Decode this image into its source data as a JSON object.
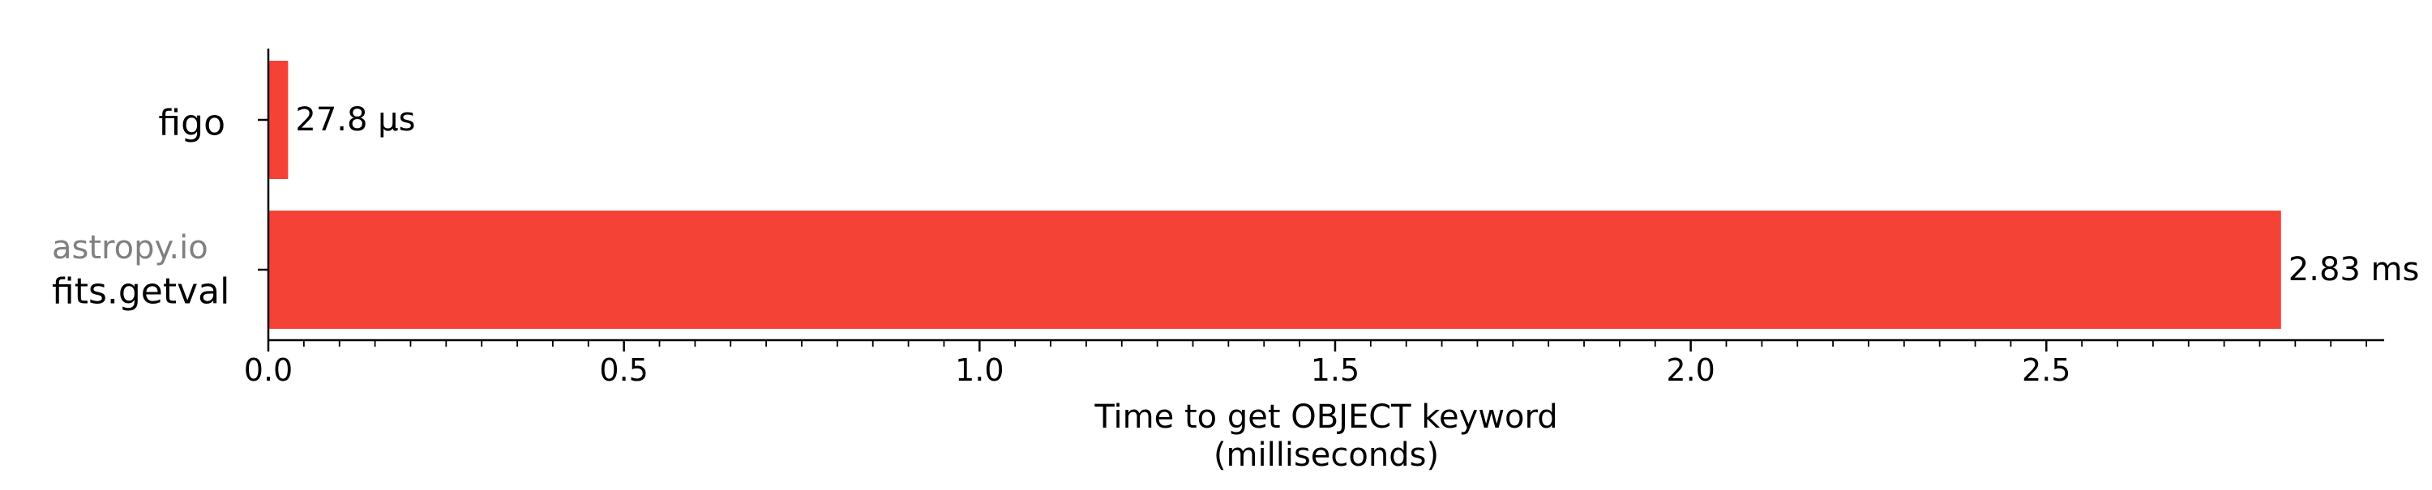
{
  "colors": {
    "bar": "#f44336",
    "axis": "#000000",
    "text": "#000000",
    "secondary_text": "#808080"
  },
  "chart_data": {
    "type": "bar",
    "orientation": "horizontal",
    "categories": [
      {
        "name": "figo",
        "prefix": ""
      },
      {
        "name": "fits.getval",
        "prefix": "astropy.io"
      }
    ],
    "values": [
      0.0278,
      2.83
    ],
    "value_labels": [
      "27.8 µs",
      "2.83 ms"
    ],
    "xlabel": [
      "Time to get OBJECT keyword",
      "(milliseconds)"
    ],
    "xticks": [
      0.0,
      0.5,
      1.0,
      1.5,
      2.0,
      2.5
    ],
    "xtick_labels": [
      "0.0",
      "0.5",
      "1.0",
      "1.5",
      "2.0",
      "2.5"
    ],
    "minor_tick_step": 0.05,
    "xlim": [
      0,
      2.975
    ],
    "grid": false,
    "legend": "none"
  }
}
